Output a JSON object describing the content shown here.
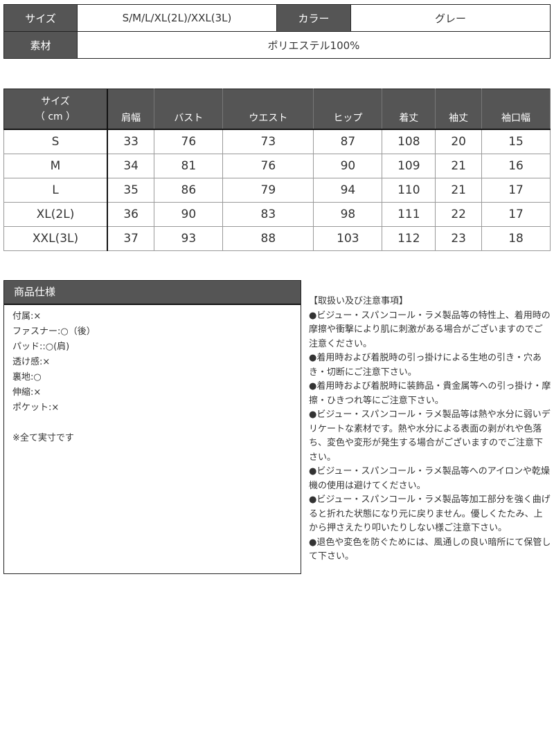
{
  "summary": {
    "size_label": "サイズ",
    "size_value": "S/M/L/XL(2L)/XXL(3L)",
    "color_label": "カラー",
    "color_value": "グレー",
    "material_label": "素材",
    "material_value": "ポリエステル100%"
  },
  "size_table": {
    "header_line1": "サイズ",
    "header_line2": "（ cm ）",
    "columns": [
      "肩幅",
      "バスト",
      "ウエスト",
      "ヒップ",
      "着丈",
      "袖丈",
      "袖口幅"
    ],
    "rows": [
      {
        "size": "S",
        "values": [
          "33",
          "76",
          "73",
          "87",
          "108",
          "20",
          "15"
        ]
      },
      {
        "size": "M",
        "values": [
          "34",
          "81",
          "76",
          "90",
          "109",
          "21",
          "16"
        ]
      },
      {
        "size": "L",
        "values": [
          "35",
          "86",
          "79",
          "94",
          "110",
          "21",
          "17"
        ]
      },
      {
        "size": "XL(2L)",
        "values": [
          "36",
          "90",
          "83",
          "98",
          "111",
          "22",
          "17"
        ]
      },
      {
        "size": "XXL(3L)",
        "values": [
          "37",
          "93",
          "88",
          "103",
          "112",
          "23",
          "18"
        ]
      }
    ]
  },
  "spec": {
    "title": "商品仕様",
    "items": [
      "付属:×",
      "ファスナー:○（後）",
      "パッド::○(肩)",
      "透け感:×",
      "裏地:○",
      "伸縮:×",
      "ポケット:×"
    ],
    "note": "※全て実寸です"
  },
  "notes": {
    "title": "【取扱い及び注意事項】",
    "items": [
      "●ビジュー・スパンコール・ラメ製品等の特性上、着用時の摩擦や衝撃により肌に刺激がある場合がございますのでご注意ください。",
      "●着用時および着脱時の引っ掛けによる生地の引き・穴あき・切断にご注意下さい。",
      "●着用時および着脱時に装飾品・貴金属等への引っ掛け・摩擦・ひきつれ等にご注意下さい。",
      "●ビジュー・スパンコール・ラメ製品等は熱や水分に弱いデリケートな素材です。熱や水分による表面の剥がれや色落ち、変色や変形が発生する場合がございますのでご注意下さい。",
      "●ビジュー・スパンコール・ラメ製品等へのアイロンや乾燥機の使用は避けてください。",
      "●ビジュー・スパンコール・ラメ製品等加工部分を強く曲げると折れた状態になり元に戻りません。優しくたたみ、上から押さえたり叩いたりしない様ご注意下さい。",
      "●退色や変色を防ぐためには、風通しの良い暗所にて保管して下さい。"
    ]
  }
}
